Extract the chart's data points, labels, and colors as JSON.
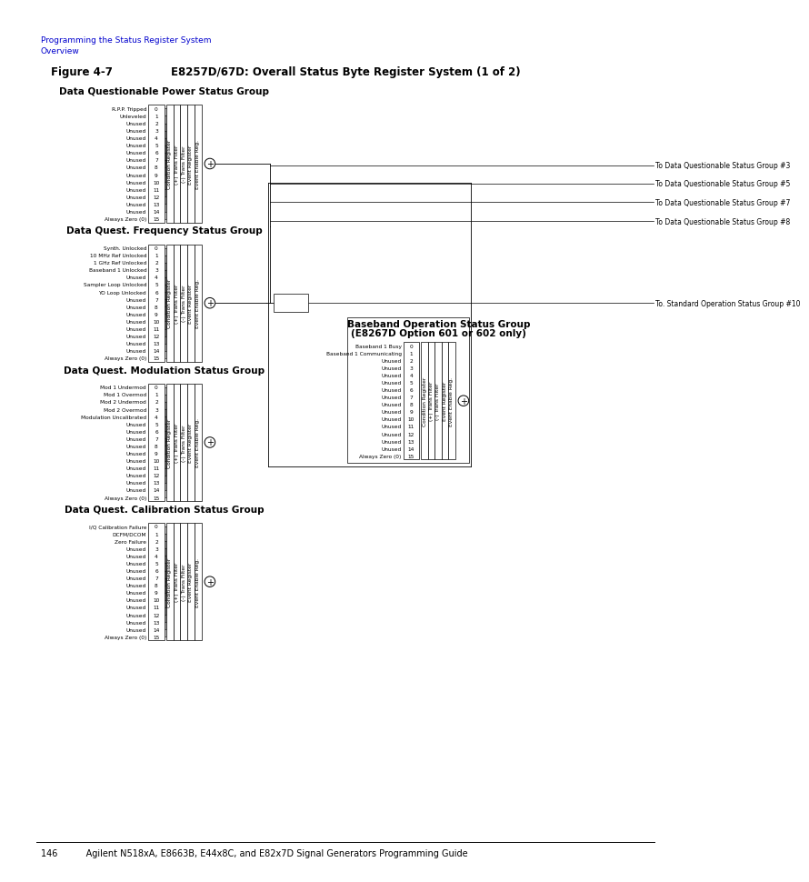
{
  "title_label": "Figure 4-7",
  "title_main": "E8257D/67D: Overall Status Byte Register System (1 of 2)",
  "header_blue_line1": "Programming the Status Register System",
  "header_blue_line2": "Overview",
  "footer_text": "146          Agilent N518xA, E8663B, E44x8C, and E82x7D Signal Generators Programming Guide",
  "bg_color": "#ffffff",
  "blue_color": "#0000cd",
  "black_color": "#000000",
  "group1": {
    "title": "Data Questionable Power Status Group",
    "bits": [
      "R.P.P. Tripped",
      "Unleveled",
      "Unused",
      "Unused",
      "Unused",
      "Unused",
      "Unused",
      "Unused",
      "Unused",
      "Unused",
      "Unused",
      "Unused",
      "Unused",
      "Unused",
      "Unused",
      "Always Zero (0)"
    ],
    "bit_nums": [
      "0",
      "1",
      "2",
      "3",
      "4",
      "5",
      "6",
      "7",
      "8",
      "9",
      "10",
      "11",
      "12",
      "13",
      "14",
      "15"
    ],
    "registers": [
      "Condition Register",
      "(+) Trans Filter",
      "(-) Trans Filter",
      "Event Register",
      "Event Enable Reg."
    ],
    "output_labels": [
      "To Data Questionable Status Group #3",
      "To Data Questionable Status Group #5",
      "To Data Questionable Status Group #7",
      "To Data Questionable Status Group #8"
    ]
  },
  "group2": {
    "title": "Data Quest. Frequency Status Group",
    "bits": [
      "Synth. Unlocked",
      "10 MHz Ref Unlocked",
      "1 GHz Ref Unlocked",
      "Baseband 1 Unlocked",
      "Unused",
      "Sampler Loop Unlocked",
      "YO Loop Unlocked",
      "Unused",
      "Unused",
      "Unused",
      "Unused",
      "Unused",
      "Unused",
      "Unused",
      "Unused",
      "Always Zero (0)"
    ],
    "bit_nums": [
      "0",
      "1",
      "2",
      "3",
      "4",
      "5",
      "6",
      "7",
      "8",
      "9",
      "10",
      "11",
      "12",
      "13",
      "14",
      "15"
    ],
    "registers": [
      "Condition Register",
      "(+) Trans Filter",
      "(-) Trans Filter",
      "Event Register",
      "Event Enable Reg."
    ],
    "output_label": "To. Standard Operation Status Group #10"
  },
  "group3": {
    "title": "Data Quest. Modulation Status Group",
    "bits": [
      "Mod 1 Undermod",
      "Mod 1 Overmod",
      "Mod 2 Undermod",
      "Mod 2 Overmod",
      "Modulation Uncalibrated",
      "Unused",
      "Unused",
      "Unused",
      "Unused",
      "Unused",
      "Unused",
      "Unused",
      "Unused",
      "Unused",
      "Unused",
      "Always Zero (0)"
    ],
    "bit_nums": [
      "0",
      "1",
      "2",
      "3",
      "4",
      "5",
      "6",
      "7",
      "8",
      "9",
      "10",
      "11",
      "12",
      "13",
      "14",
      "15"
    ],
    "registers": [
      "Condition Register",
      "(+) Trans Filter",
      "(-) Trans Filter",
      "Event Register",
      "Event Enable Reg."
    ]
  },
  "group4": {
    "title": "Data Quest. Calibration Status Group",
    "bits": [
      "I/Q Calibration Failure",
      "DCFM/DCOM",
      "Zero Failure",
      "Unused",
      "Unused",
      "Unused",
      "Unused",
      "Unused",
      "Unused",
      "Unused",
      "Unused",
      "Unused",
      "Unused",
      "Unused",
      "Unused",
      "Always Zero (0)"
    ],
    "bit_nums": [
      "0",
      "1",
      "2",
      "3",
      "4",
      "5",
      "6",
      "7",
      "8",
      "9",
      "10",
      "11",
      "12",
      "13",
      "14",
      "15"
    ],
    "registers": [
      "Condition Register",
      "(+) Trans Filter",
      "(-) Trans Filter",
      "Event Register",
      "Event Enable Reg."
    ]
  },
  "group5": {
    "title_line1": "Baseband Operation Status Group",
    "title_line2": "(E8267D Option 601 or 602 only)",
    "bits": [
      "Baseband 1 Busy",
      "Baseband 1 Communicating",
      "Unused",
      "Unused",
      "Unused",
      "Unused",
      "Unused",
      "Unused",
      "Unused",
      "Unused",
      "Unused",
      "Unused",
      "Unused",
      "Unused",
      "Unused",
      "Always Zero (0)"
    ],
    "bit_nums": [
      "0",
      "1",
      "2",
      "3",
      "4",
      "5",
      "6",
      "7",
      "8",
      "9",
      "10",
      "11",
      "12",
      "13",
      "14",
      "15"
    ],
    "registers": [
      "Condition Register",
      "(+) Trans Filter",
      "(-) Trans Filter",
      "Event Register",
      "Event Enable Reg."
    ]
  }
}
